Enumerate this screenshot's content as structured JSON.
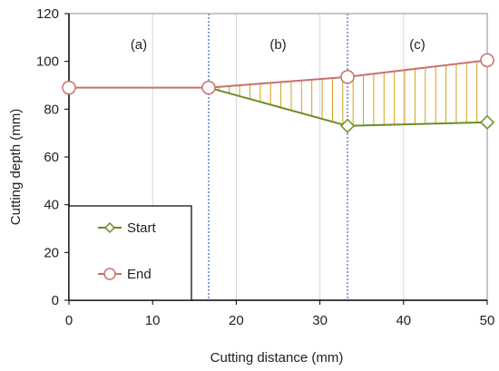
{
  "chart_data": {
    "type": "line",
    "xlabel": "Cutting distance (mm)",
    "ylabel": "Cutting depth (mm)",
    "xlim": [
      0,
      50
    ],
    "ylim": [
      0,
      120
    ],
    "xticks": [
      0,
      10,
      20,
      30,
      40,
      50
    ],
    "yticks": [
      0,
      20,
      40,
      60,
      80,
      100,
      120
    ],
    "grid": "vertical",
    "legend": "bottom-left",
    "series": [
      {
        "name": "Start",
        "color": "#6b8e23",
        "marker": "diamond",
        "x": [
          16.7,
          33.3,
          50
        ],
        "y": [
          89,
          73,
          74.5
        ]
      },
      {
        "name": "End",
        "color": "#c9706a",
        "marker": "circle",
        "x": [
          0,
          16.7,
          33.3,
          50
        ],
        "y": [
          89,
          89,
          93.5,
          100.5
        ]
      }
    ],
    "fill_between": {
      "color": "#d4a017",
      "between": [
        "Start",
        "End"
      ],
      "from_x": 16.7,
      "to_x": 50
    },
    "dividers": [
      16.7,
      33.3
    ],
    "regions": [
      {
        "label": "(a)",
        "x": 8.35,
        "y": 107
      },
      {
        "label": "(b)",
        "x": 25,
        "y": 107
      },
      {
        "label": "(c)",
        "x": 41.65,
        "y": 107
      }
    ]
  }
}
